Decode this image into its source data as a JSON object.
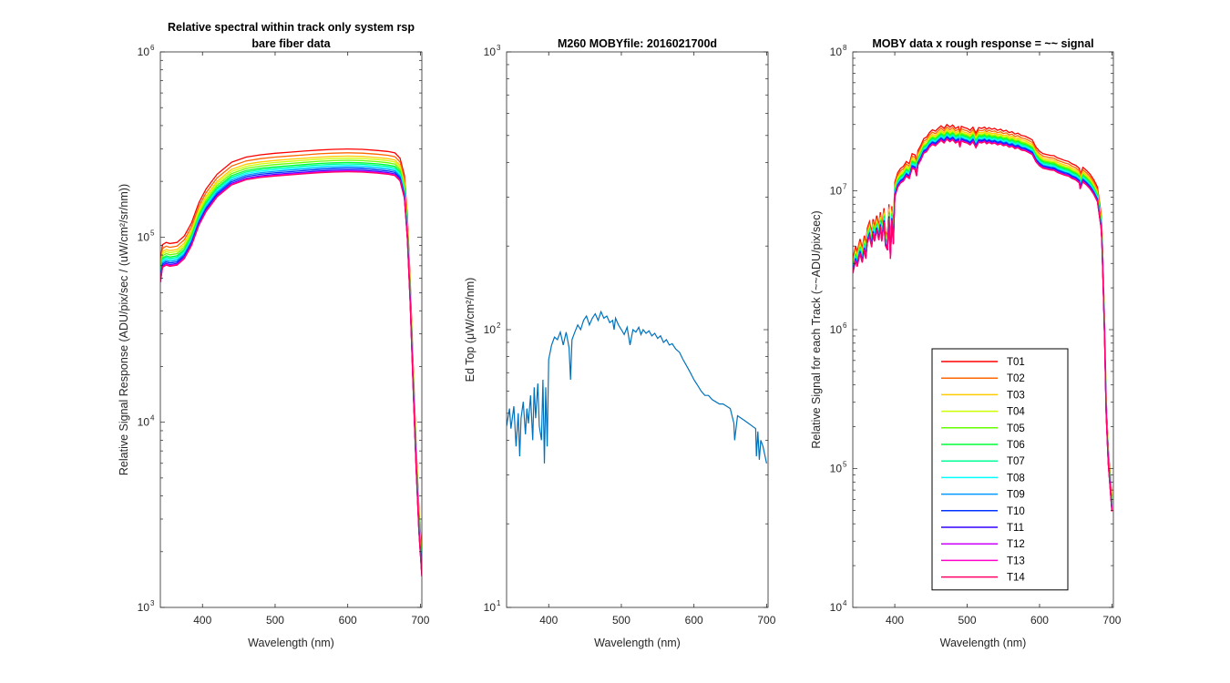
{
  "chart_data": [
    {
      "type": "line",
      "title": [
        "Relative spectral within track only system rsp",
        "bare fiber data"
      ],
      "xlabel": "Wavelength (nm)",
      "ylabel": "Relative Signal Response (ADU/pix/sec / (uW/cm²/sr/nm))",
      "xlim": [
        342,
        702
      ],
      "ylim": [
        1000,
        1000000
      ],
      "yscale": "log",
      "xticks": [
        400,
        500,
        600,
        700
      ],
      "yticks": [
        {
          "base": "10",
          "exp": "3"
        },
        {
          "base": "10",
          "exp": "4"
        },
        {
          "base": "10",
          "exp": "5"
        },
        {
          "base": "10",
          "exp": "6"
        }
      ],
      "x": [
        342,
        345,
        350,
        355,
        365,
        375,
        385,
        395,
        405,
        420,
        440,
        460,
        480,
        500,
        520,
        540,
        560,
        580,
        600,
        620,
        640,
        655,
        665,
        672,
        678,
        682,
        686,
        690,
        694,
        698,
        702
      ],
      "base_values": [
        58000,
        70000,
        72000,
        71000,
        72000,
        78000,
        92000,
        118000,
        140000,
        168000,
        195000,
        208000,
        214000,
        218000,
        221000,
        224000,
        227000,
        229000,
        230000,
        229000,
        226000,
        223000,
        219000,
        205000,
        165000,
        100000,
        45000,
        16000,
        6000,
        2600,
        1500
      ],
      "series": [
        {
          "name": "T01",
          "color": "#ff0000",
          "factor": 1.3
        },
        {
          "name": "T02",
          "color": "#ff6600",
          "factor": 1.24
        },
        {
          "name": "T03",
          "color": "#ffcc00",
          "factor": 1.19
        },
        {
          "name": "T04",
          "color": "#ccff00",
          "factor": 1.16
        },
        {
          "name": "T05",
          "color": "#66ff00",
          "factor": 1.13
        },
        {
          "name": "T06",
          "color": "#00ff33",
          "factor": 1.1
        },
        {
          "name": "T07",
          "color": "#00ff99",
          "factor": 1.08
        },
        {
          "name": "T08",
          "color": "#00ffff",
          "factor": 1.06
        },
        {
          "name": "T09",
          "color": "#0099ff",
          "factor": 1.04
        },
        {
          "name": "T10",
          "color": "#0033ff",
          "factor": 1.02
        },
        {
          "name": "T11",
          "color": "#3300ff",
          "factor": 1.0
        },
        {
          "name": "T12",
          "color": "#cc00ff",
          "factor": 0.99
        },
        {
          "name": "T13",
          "color": "#ff00cc",
          "factor": 0.985
        },
        {
          "name": "T14",
          "color": "#ff0066",
          "factor": 0.98
        }
      ]
    },
    {
      "type": "line",
      "title": [
        "M260 MOBYfile: 2016021700d"
      ],
      "xlabel": "Wavelength (nm)",
      "ylabel": "Ed Top  (μW/cm²/nm)",
      "xlim": [
        342,
        702
      ],
      "ylim": [
        10,
        1000
      ],
      "yscale": "log",
      "xticks": [
        400,
        500,
        600,
        700
      ],
      "yticks": [
        {
          "base": "10",
          "exp": "1"
        },
        {
          "base": "10",
          "exp": "2"
        },
        {
          "base": "10",
          "exp": "3"
        }
      ],
      "series": [
        {
          "name": "Ed Top",
          "color": "#0072bd",
          "x": [
            342,
            346,
            348,
            352,
            355,
            358,
            360,
            362,
            365,
            368,
            370,
            372,
            375,
            378,
            380,
            382,
            385,
            387,
            390,
            392,
            394,
            396,
            398,
            400,
            404,
            408,
            412,
            416,
            420,
            424,
            428,
            430,
            432,
            436,
            440,
            444,
            448,
            452,
            456,
            460,
            464,
            468,
            472,
            476,
            480,
            484,
            488,
            490,
            492,
            496,
            500,
            504,
            508,
            512,
            516,
            520,
            524,
            527,
            530,
            534,
            538,
            542,
            546,
            550,
            554,
            558,
            562,
            566,
            570,
            575,
            580,
            585,
            590,
            595,
            600,
            605,
            610,
            615,
            620,
            625,
            630,
            635,
            640,
            645,
            650,
            655,
            656,
            660,
            665,
            670,
            675,
            680,
            685,
            686,
            688,
            690,
            692,
            695,
            700
          ],
          "y": [
            45,
            52,
            44,
            53,
            38,
            50,
            35,
            48,
            55,
            42,
            52,
            46,
            58,
            40,
            62,
            48,
            64,
            45,
            40,
            66,
            33,
            62,
            38,
            78,
            88,
            94,
            92,
            98,
            88,
            98,
            86,
            66,
            92,
            98,
            104,
            100,
            108,
            112,
            104,
            110,
            114,
            108,
            116,
            110,
            112,
            106,
            108,
            100,
            110,
            104,
            100,
            96,
            102,
            88,
            100,
            98,
            102,
            96,
            100,
            97,
            99,
            95,
            97,
            93,
            95,
            90,
            92,
            88,
            89,
            85,
            83,
            78,
            74,
            70,
            66,
            63,
            60,
            58,
            58,
            56,
            55,
            54,
            54,
            53,
            52,
            46,
            40,
            49,
            48,
            47,
            46,
            45,
            44,
            35,
            43,
            34,
            40,
            38,
            33
          ]
        }
      ]
    },
    {
      "type": "line",
      "title": [
        "MOBY data x rough response = ~~ signal"
      ],
      "xlabel": "Wavelength (nm)",
      "ylabel": "Relative Signal for each Track (~~ADU/pix/sec)",
      "xlim": [
        342,
        702
      ],
      "ylim": [
        10000,
        100000000
      ],
      "yscale": "log",
      "xticks": [
        400,
        500,
        600,
        700
      ],
      "yticks": [
        {
          "base": "10",
          "exp": "4"
        },
        {
          "base": "10",
          "exp": "5"
        },
        {
          "base": "10",
          "exp": "6"
        },
        {
          "base": "10",
          "exp": "7"
        },
        {
          "base": "10",
          "exp": "8"
        }
      ],
      "x": [
        342,
        346,
        348,
        352,
        355,
        358,
        360,
        362,
        365,
        368,
        370,
        372,
        375,
        378,
        380,
        382,
        385,
        387,
        390,
        392,
        394,
        396,
        398,
        400,
        404,
        408,
        412,
        416,
        420,
        424,
        428,
        430,
        432,
        436,
        440,
        444,
        448,
        452,
        456,
        460,
        464,
        468,
        472,
        476,
        480,
        484,
        488,
        490,
        492,
        496,
        500,
        504,
        508,
        512,
        516,
        520,
        524,
        527,
        530,
        534,
        538,
        542,
        546,
        550,
        554,
        558,
        562,
        566,
        570,
        575,
        580,
        585,
        590,
        595,
        600,
        605,
        610,
        615,
        620,
        625,
        630,
        635,
        640,
        645,
        650,
        655,
        656,
        660,
        665,
        670,
        675,
        680,
        685,
        686,
        688,
        690,
        692,
        695,
        700
      ],
      "base_values": [
        2600000,
        3200000,
        2900000,
        3600000,
        3100000,
        3800000,
        3300000,
        4300000,
        4800000,
        4000000,
        5000000,
        4400000,
        5300000,
        4500000,
        5600000,
        4400000,
        6000000,
        4100000,
        3800000,
        6400000,
        3300000,
        6200000,
        4200000,
        9200000,
        10800000,
        11600000,
        12000000,
        13000000,
        12500000,
        14800000,
        14500000,
        13000000,
        15600000,
        17000000,
        19000000,
        19500000,
        21000000,
        22000000,
        21500000,
        22500000,
        23500000,
        22500000,
        24000000,
        23000000,
        23800000,
        22500000,
        23200000,
        21000000,
        23300000,
        22800000,
        22500000,
        21800000,
        23000000,
        20800000,
        22800000,
        22500000,
        23000000,
        22200000,
        22800000,
        22200000,
        22500000,
        21800000,
        22200000,
        21500000,
        21800000,
        21000000,
        21300000,
        20500000,
        20800000,
        20000000,
        19800000,
        19200000,
        18600000,
        16500000,
        15400000,
        14800000,
        14600000,
        14400000,
        14300000,
        13800000,
        13500000,
        13200000,
        13000000,
        12500000,
        12200000,
        11600000,
        10500000,
        11800000,
        11200000,
        10500000,
        9600000,
        8500000,
        5500000,
        4500000,
        2000000,
        800000,
        250000,
        110000,
        50000
      ],
      "series": [
        {
          "name": "T01",
          "color": "#ff0000",
          "factor": 1.25
        },
        {
          "name": "T02",
          "color": "#ff6600",
          "factor": 1.2
        },
        {
          "name": "T03",
          "color": "#ffcc00",
          "factor": 1.16
        },
        {
          "name": "T04",
          "color": "#ccff00",
          "factor": 1.13
        },
        {
          "name": "T05",
          "color": "#66ff00",
          "factor": 1.11
        },
        {
          "name": "T06",
          "color": "#00ff33",
          "factor": 1.09
        },
        {
          "name": "T07",
          "color": "#00ff99",
          "factor": 1.07
        },
        {
          "name": "T08",
          "color": "#00ffff",
          "factor": 1.05
        },
        {
          "name": "T09",
          "color": "#0099ff",
          "factor": 1.03
        },
        {
          "name": "T10",
          "color": "#0033ff",
          "factor": 1.02
        },
        {
          "name": "T11",
          "color": "#3300ff",
          "factor": 1.0
        },
        {
          "name": "T12",
          "color": "#cc00ff",
          "factor": 0.99
        },
        {
          "name": "T13",
          "color": "#ff00cc",
          "factor": 0.985
        },
        {
          "name": "T14",
          "color": "#ff0066",
          "factor": 0.98
        }
      ],
      "legend": {
        "position": "lower-center",
        "labels": [
          "T01",
          "T02",
          "T03",
          "T04",
          "T05",
          "T06",
          "T07",
          "T08",
          "T09",
          "T10",
          "T11",
          "T12",
          "T13",
          "T14"
        ]
      }
    }
  ]
}
